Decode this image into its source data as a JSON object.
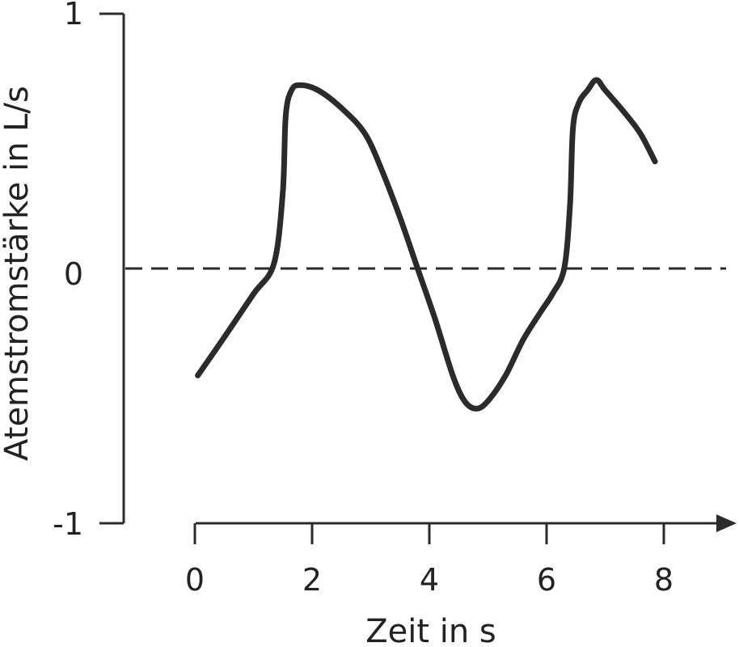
{
  "chart_data": {
    "type": "line",
    "xlabel": "Zeit in s",
    "ylabel": "Atemstromstärke in L/s",
    "xlim": [
      0,
      9
    ],
    "ylim": [
      -1,
      1
    ],
    "x_ticks": [
      "0",
      "2",
      "4",
      "6",
      "8"
    ],
    "y_ticks": [
      "1",
      "0",
      "-1"
    ],
    "reference_line": {
      "y": 0,
      "style": "dashed"
    },
    "grid": false,
    "legend": "none",
    "series": [
      {
        "x": [
          0.05,
          0.5,
          1.0,
          1.35,
          1.5,
          1.55,
          1.65,
          1.8,
          2.1,
          2.5,
          2.9,
          3.2,
          3.5,
          3.8,
          4.1,
          4.4,
          4.6,
          4.8,
          5.0,
          5.3,
          5.6,
          5.9,
          6.1,
          6.3,
          6.4,
          6.45,
          6.55,
          6.7,
          6.85,
          7.0,
          7.3,
          7.6,
          7.85
        ],
        "y": [
          -0.42,
          -0.27,
          -0.1,
          0.02,
          0.3,
          0.6,
          0.7,
          0.72,
          0.7,
          0.63,
          0.53,
          0.38,
          0.2,
          0.0,
          -0.2,
          -0.42,
          -0.52,
          -0.55,
          -0.52,
          -0.42,
          -0.28,
          -0.17,
          -0.1,
          0.0,
          0.25,
          0.55,
          0.65,
          0.7,
          0.74,
          0.7,
          0.62,
          0.53,
          0.42
        ]
      }
    ],
    "line_color": "#2b2b2b"
  }
}
